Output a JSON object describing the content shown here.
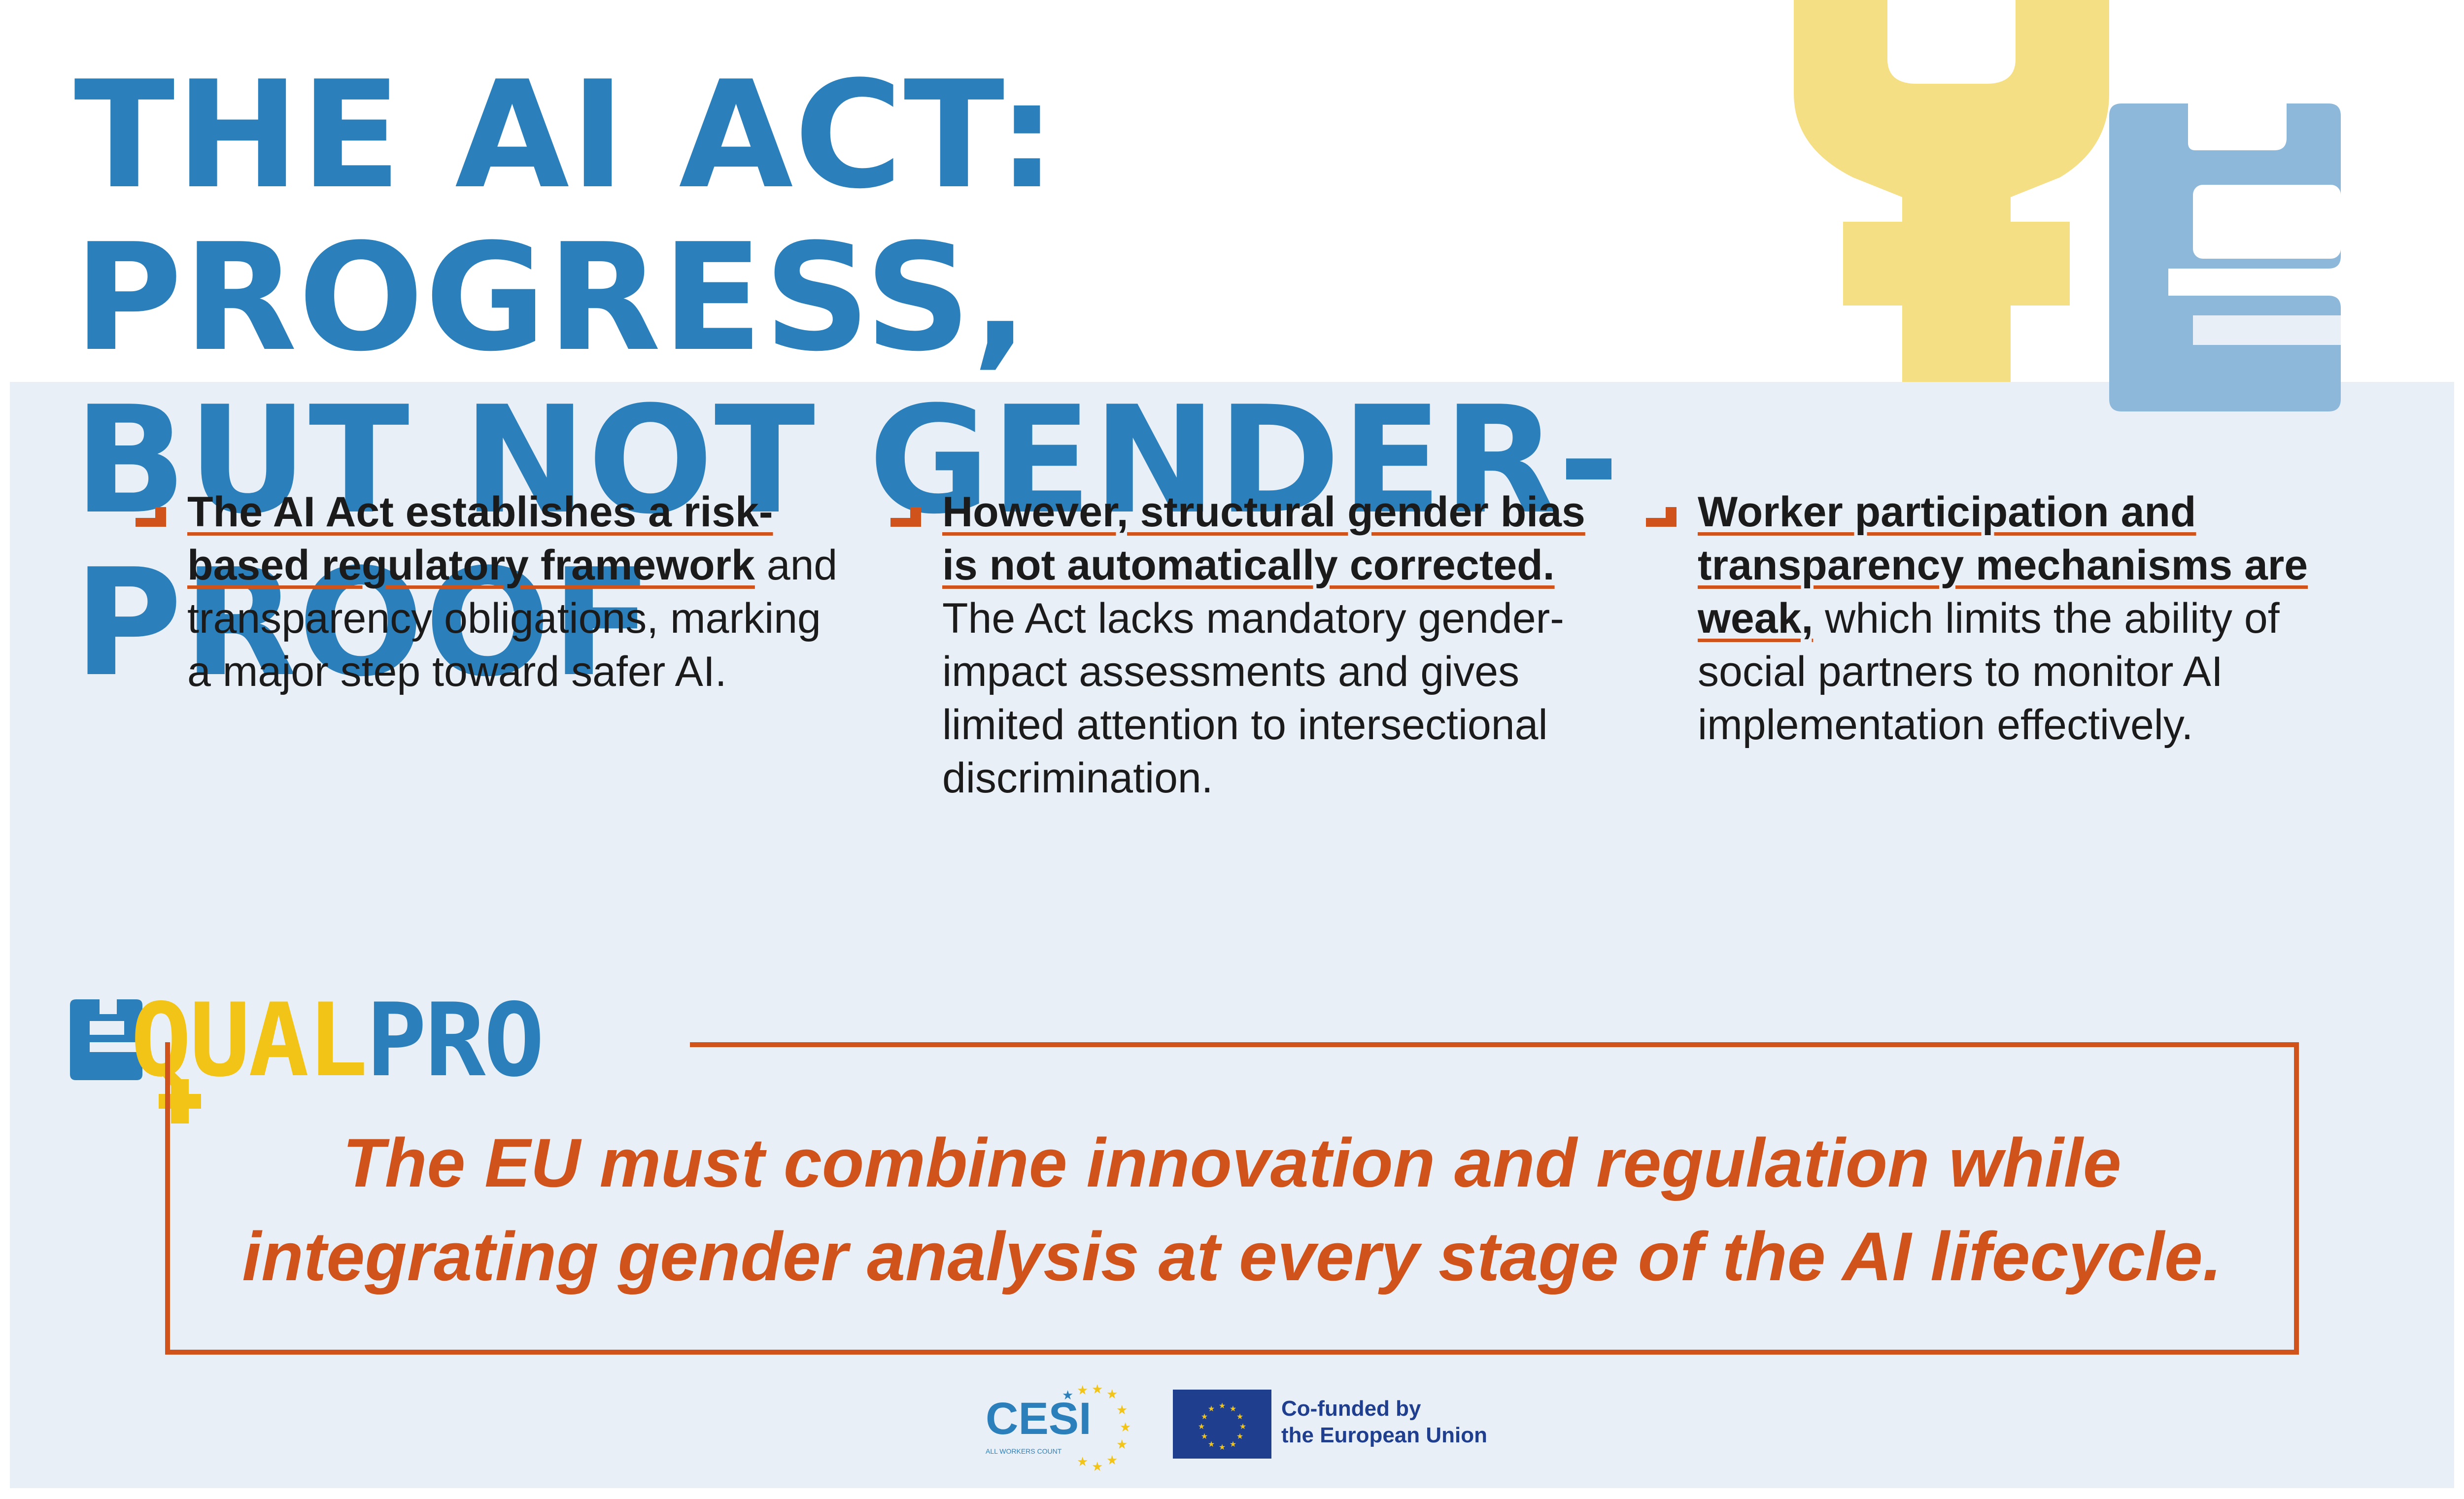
{
  "header": {
    "title_line1": "THE AI ACT: PROGRESS,",
    "title_line2": "BUT NOT GENDER-PROOF"
  },
  "columns": [
    {
      "highlight": "The AI Act establishes a risk-based regulatory framework",
      "rest": " and transparency obligations, marking a major step toward safer AI."
    },
    {
      "highlight": "However, structural gender bias is not automatically corrected.",
      "rest": " The Act lacks mandatory gender-impact assessments and gives limited attention to intersectional discrimination."
    },
    {
      "highlight": "Worker participation and transparency mechanisms are weak,",
      "rest": " which limits the ability of social partners to monitor AI implementation effectively."
    }
  ],
  "logo": {
    "part1": "QUAL",
    "part2": "PRO"
  },
  "quote": {
    "line1": "The EU must combine innovation and regulation while",
    "line2": "integrating gender analysis at every stage of the AI lifecycle."
  },
  "footer": {
    "cesi_name": "CESI",
    "cesi_tagline": "ALL WORKERS COUNT",
    "eu_line1": "Co-funded by",
    "eu_line2": "the European Union"
  },
  "colors": {
    "blue": "#2b80bb",
    "light_blue": "#8db8da",
    "yellow": "#f5df85",
    "orange": "#d0531b",
    "panel": "#e9eff6",
    "eu_blue": "#1f3f8e"
  }
}
